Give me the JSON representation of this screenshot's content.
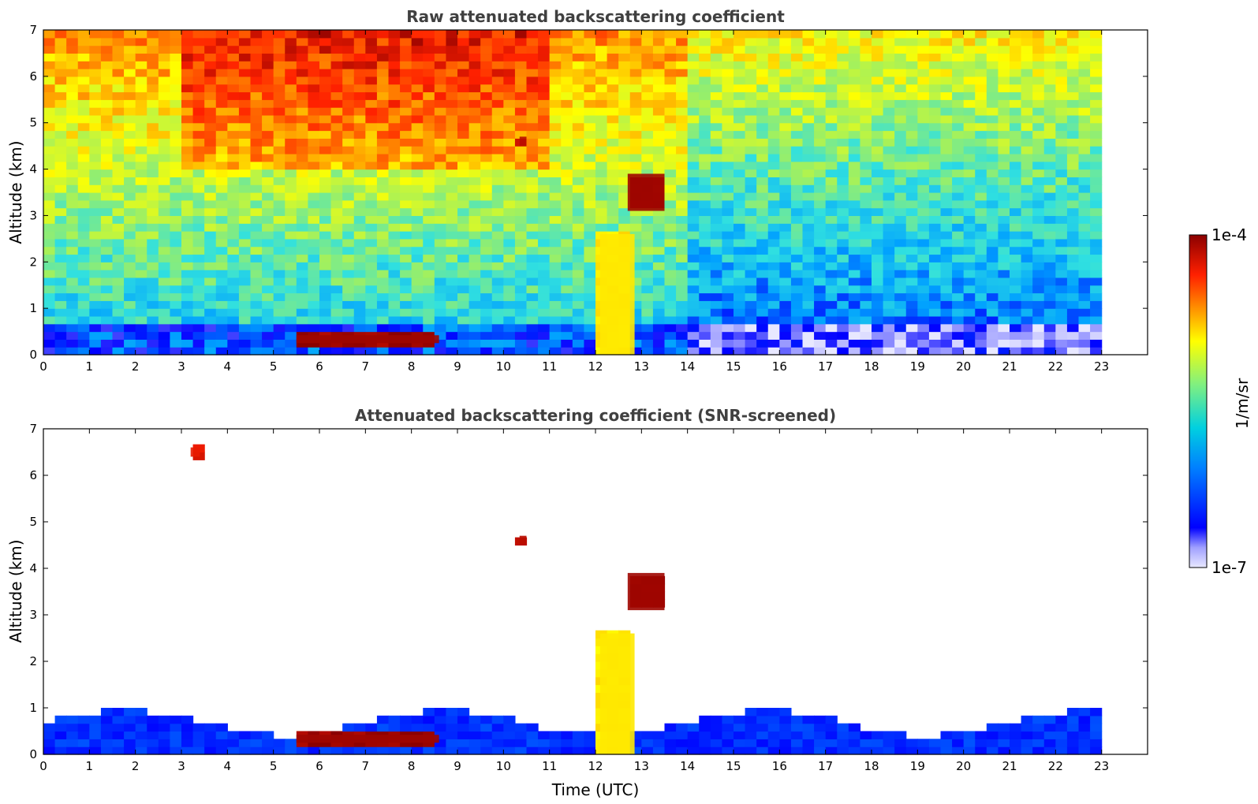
{
  "chart_data": [
    {
      "type": "heatmap",
      "title": "Raw attenuated backscattering coefficient",
      "xlabel": "",
      "ylabel": "Altitude (km)",
      "xlim": [
        0,
        24
      ],
      "ylim": [
        0,
        7
      ],
      "x_ticks": [
        0,
        1,
        2,
        3,
        4,
        5,
        6,
        7,
        8,
        9,
        10,
        11,
        12,
        13,
        14,
        15,
        16,
        17,
        18,
        19,
        20,
        21,
        22,
        23
      ],
      "y_ticks": [
        0,
        1,
        2,
        3,
        4,
        5,
        6,
        7
      ],
      "data_extent_x": [
        0,
        23
      ],
      "screened": false,
      "features": [
        {
          "kind": "boundary_layer",
          "x": [
            0,
            23
          ],
          "y": [
            0,
            0.6
          ],
          "level": 0.2
        },
        {
          "kind": "cloud_layer",
          "x": [
            5.5,
            8.6
          ],
          "y": [
            0.25,
            0.42
          ],
          "level": 0.98
        },
        {
          "kind": "precip_column",
          "x": [
            12.1,
            12.85
          ],
          "y": [
            0,
            2.6
          ],
          "level": 0.65
        },
        {
          "kind": "cloud_streak",
          "x": [
            12.7,
            13.5
          ],
          "y": [
            3.1,
            3.9
          ],
          "level": 0.98
        },
        {
          "kind": "cloud_patch",
          "x": [
            10.35,
            10.5
          ],
          "y": [
            4.5,
            4.7
          ],
          "level": 0.95
        }
      ]
    },
    {
      "type": "heatmap",
      "title": "Attenuated backscattering coefficient (SNR-screened)",
      "xlabel": "Time (UTC)",
      "ylabel": "Altitude (km)",
      "xlim": [
        0,
        24
      ],
      "ylim": [
        0,
        7
      ],
      "x_ticks": [
        0,
        1,
        2,
        3,
        4,
        5,
        6,
        7,
        8,
        9,
        10,
        11,
        12,
        13,
        14,
        15,
        16,
        17,
        18,
        19,
        20,
        21,
        22,
        23
      ],
      "y_ticks": [
        0,
        1,
        2,
        3,
        4,
        5,
        6,
        7
      ],
      "data_extent_x": [
        0,
        23
      ],
      "screened": true,
      "features": [
        {
          "kind": "boundary_layer",
          "x": [
            0,
            23
          ],
          "y": [
            0,
            0.9
          ],
          "level": 0.2
        },
        {
          "kind": "cloud_layer",
          "x": [
            5.5,
            8.6
          ],
          "y": [
            0.25,
            0.42
          ],
          "level": 0.98
        },
        {
          "kind": "precip_column",
          "x": [
            12.1,
            12.85
          ],
          "y": [
            0,
            2.6
          ],
          "level": 0.65
        },
        {
          "kind": "cloud_streak",
          "x": [
            12.7,
            13.5
          ],
          "y": [
            3.1,
            3.9
          ],
          "level": 0.98
        },
        {
          "kind": "cloud_patch",
          "x": [
            10.35,
            10.5
          ],
          "y": [
            4.5,
            4.7
          ],
          "level": 0.95
        },
        {
          "kind": "cloud_patch",
          "x": [
            3.2,
            3.4
          ],
          "y": [
            6.4,
            6.6
          ],
          "level": 0.9
        }
      ]
    }
  ],
  "colorbar": {
    "label": "1/m/sr",
    "max_label": "1e-4",
    "min_label": "1e-7",
    "scale": "log",
    "range": [
      1e-07,
      0.0001
    ],
    "colormap": [
      "#e8e8ff",
      "#0000ff",
      "#00a0ff",
      "#30e0e0",
      "#a0f060",
      "#ffff00",
      "#ff9000",
      "#ff2000",
      "#8b0000"
    ]
  }
}
